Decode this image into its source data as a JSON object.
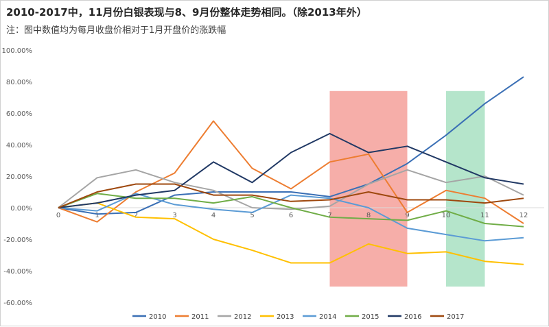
{
  "chart_data": {
    "type": "line",
    "title": "2010-2017中，11月份白银表现与8、9月份整体走势相同。（除2013年外）",
    "subtitle": "注：图中数值均为每月收盘价相对于1月开盘价的涨跌幅",
    "x": [
      0,
      1,
      2,
      3,
      4,
      5,
      6,
      7,
      8,
      9,
      10,
      11,
      12
    ],
    "xlim": [
      0,
      12
    ],
    "ylim": [
      -60,
      100
    ],
    "y_ticks": [
      "100.00%",
      "80.00%",
      "60.00%",
      "40.00%",
      "20.00%",
      "0.00%",
      "-20.00%",
      "-40.00%",
      "-60.00%"
    ],
    "y_tick_values": [
      100,
      80,
      60,
      40,
      20,
      0,
      -20,
      -40,
      -60
    ],
    "x_ticks": [
      "0",
      "1",
      "2",
      "3",
      "4",
      "5",
      "6",
      "7",
      "8",
      "9",
      "10",
      "11",
      "12"
    ],
    "highlights": [
      {
        "from": 7,
        "to": 9,
        "color": "#f4a09a"
      },
      {
        "from": 10,
        "to": 11,
        "color": "#a8e0c2"
      }
    ],
    "legend_position": "bottom",
    "series": [
      {
        "name": "2010",
        "color": "#3a6fb5",
        "values": [
          0,
          -4,
          -3,
          8,
          10,
          10,
          10,
          7,
          15,
          28,
          46,
          66,
          83
        ]
      },
      {
        "name": "2011",
        "color": "#ed7d31",
        "values": [
          0,
          -9,
          10,
          22,
          55,
          25,
          12,
          29,
          34,
          -3,
          11,
          6,
          -10
        ]
      },
      {
        "name": "2012",
        "color": "#a5a5a5",
        "values": [
          0,
          19,
          24,
          16,
          11,
          0,
          -1,
          1,
          15,
          24,
          16,
          20,
          8
        ]
      },
      {
        "name": "2013",
        "color": "#ffc000",
        "values": [
          0,
          3,
          -6,
          -7,
          -20,
          -27,
          -35,
          -35,
          -23,
          -29,
          -28,
          -34,
          -36
        ]
      },
      {
        "name": "2014",
        "color": "#5b9bd5",
        "values": [
          0,
          -2,
          9,
          2,
          -1,
          -3,
          8,
          6,
          0,
          -13,
          -17,
          -21,
          -19
        ]
      },
      {
        "name": "2015",
        "color": "#70ad47",
        "values": [
          0,
          9,
          6,
          6,
          3,
          7,
          0,
          -6,
          -7,
          -8,
          -2,
          -10,
          -12
        ]
      },
      {
        "name": "2016",
        "color": "#203864",
        "values": [
          0,
          3,
          8,
          11,
          29,
          16,
          35,
          47,
          35,
          39,
          29,
          19,
          15
        ]
      },
      {
        "name": "2017",
        "color": "#9e480e",
        "values": [
          0,
          10,
          15,
          15,
          8,
          8,
          4,
          5,
          10,
          5,
          5,
          3,
          6
        ]
      }
    ]
  }
}
